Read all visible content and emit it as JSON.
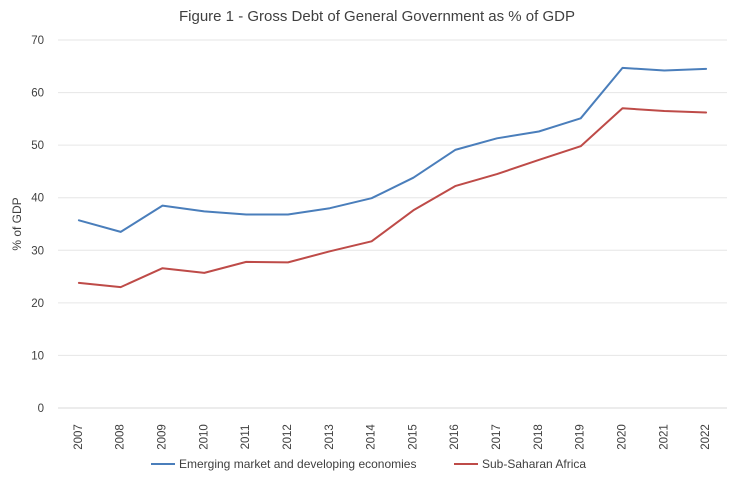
{
  "chart_data": {
    "type": "line",
    "title": "Figure 1 - Gross Debt of General Government as % of GDP",
    "xlabel": "",
    "ylabel": "% of GDP",
    "ylim": [
      0,
      70
    ],
    "yticks": [
      0,
      10,
      20,
      30,
      40,
      50,
      60,
      70
    ],
    "grid": true,
    "legend_position": "bottom",
    "categories": [
      "2007",
      "2008",
      "2009",
      "2010",
      "2011",
      "2012",
      "2013",
      "2014",
      "2015",
      "2016",
      "2017",
      "2018",
      "2019",
      "2020",
      "2021",
      "2022"
    ],
    "series": [
      {
        "name": "Emerging market and developing economies",
        "color": "#4a7ebb",
        "values": [
          35.7,
          33.5,
          38.5,
          37.4,
          36.8,
          36.8,
          38.0,
          39.9,
          43.8,
          49.1,
          51.3,
          52.6,
          55.1,
          64.7,
          64.2,
          64.5
        ]
      },
      {
        "name": "Sub-Saharan Africa",
        "color": "#be4b48",
        "values": [
          23.8,
          23.0,
          26.6,
          25.7,
          27.8,
          27.7,
          29.8,
          31.7,
          37.6,
          42.2,
          44.5,
          47.2,
          49.8,
          57.0,
          56.5,
          56.2
        ]
      }
    ]
  }
}
